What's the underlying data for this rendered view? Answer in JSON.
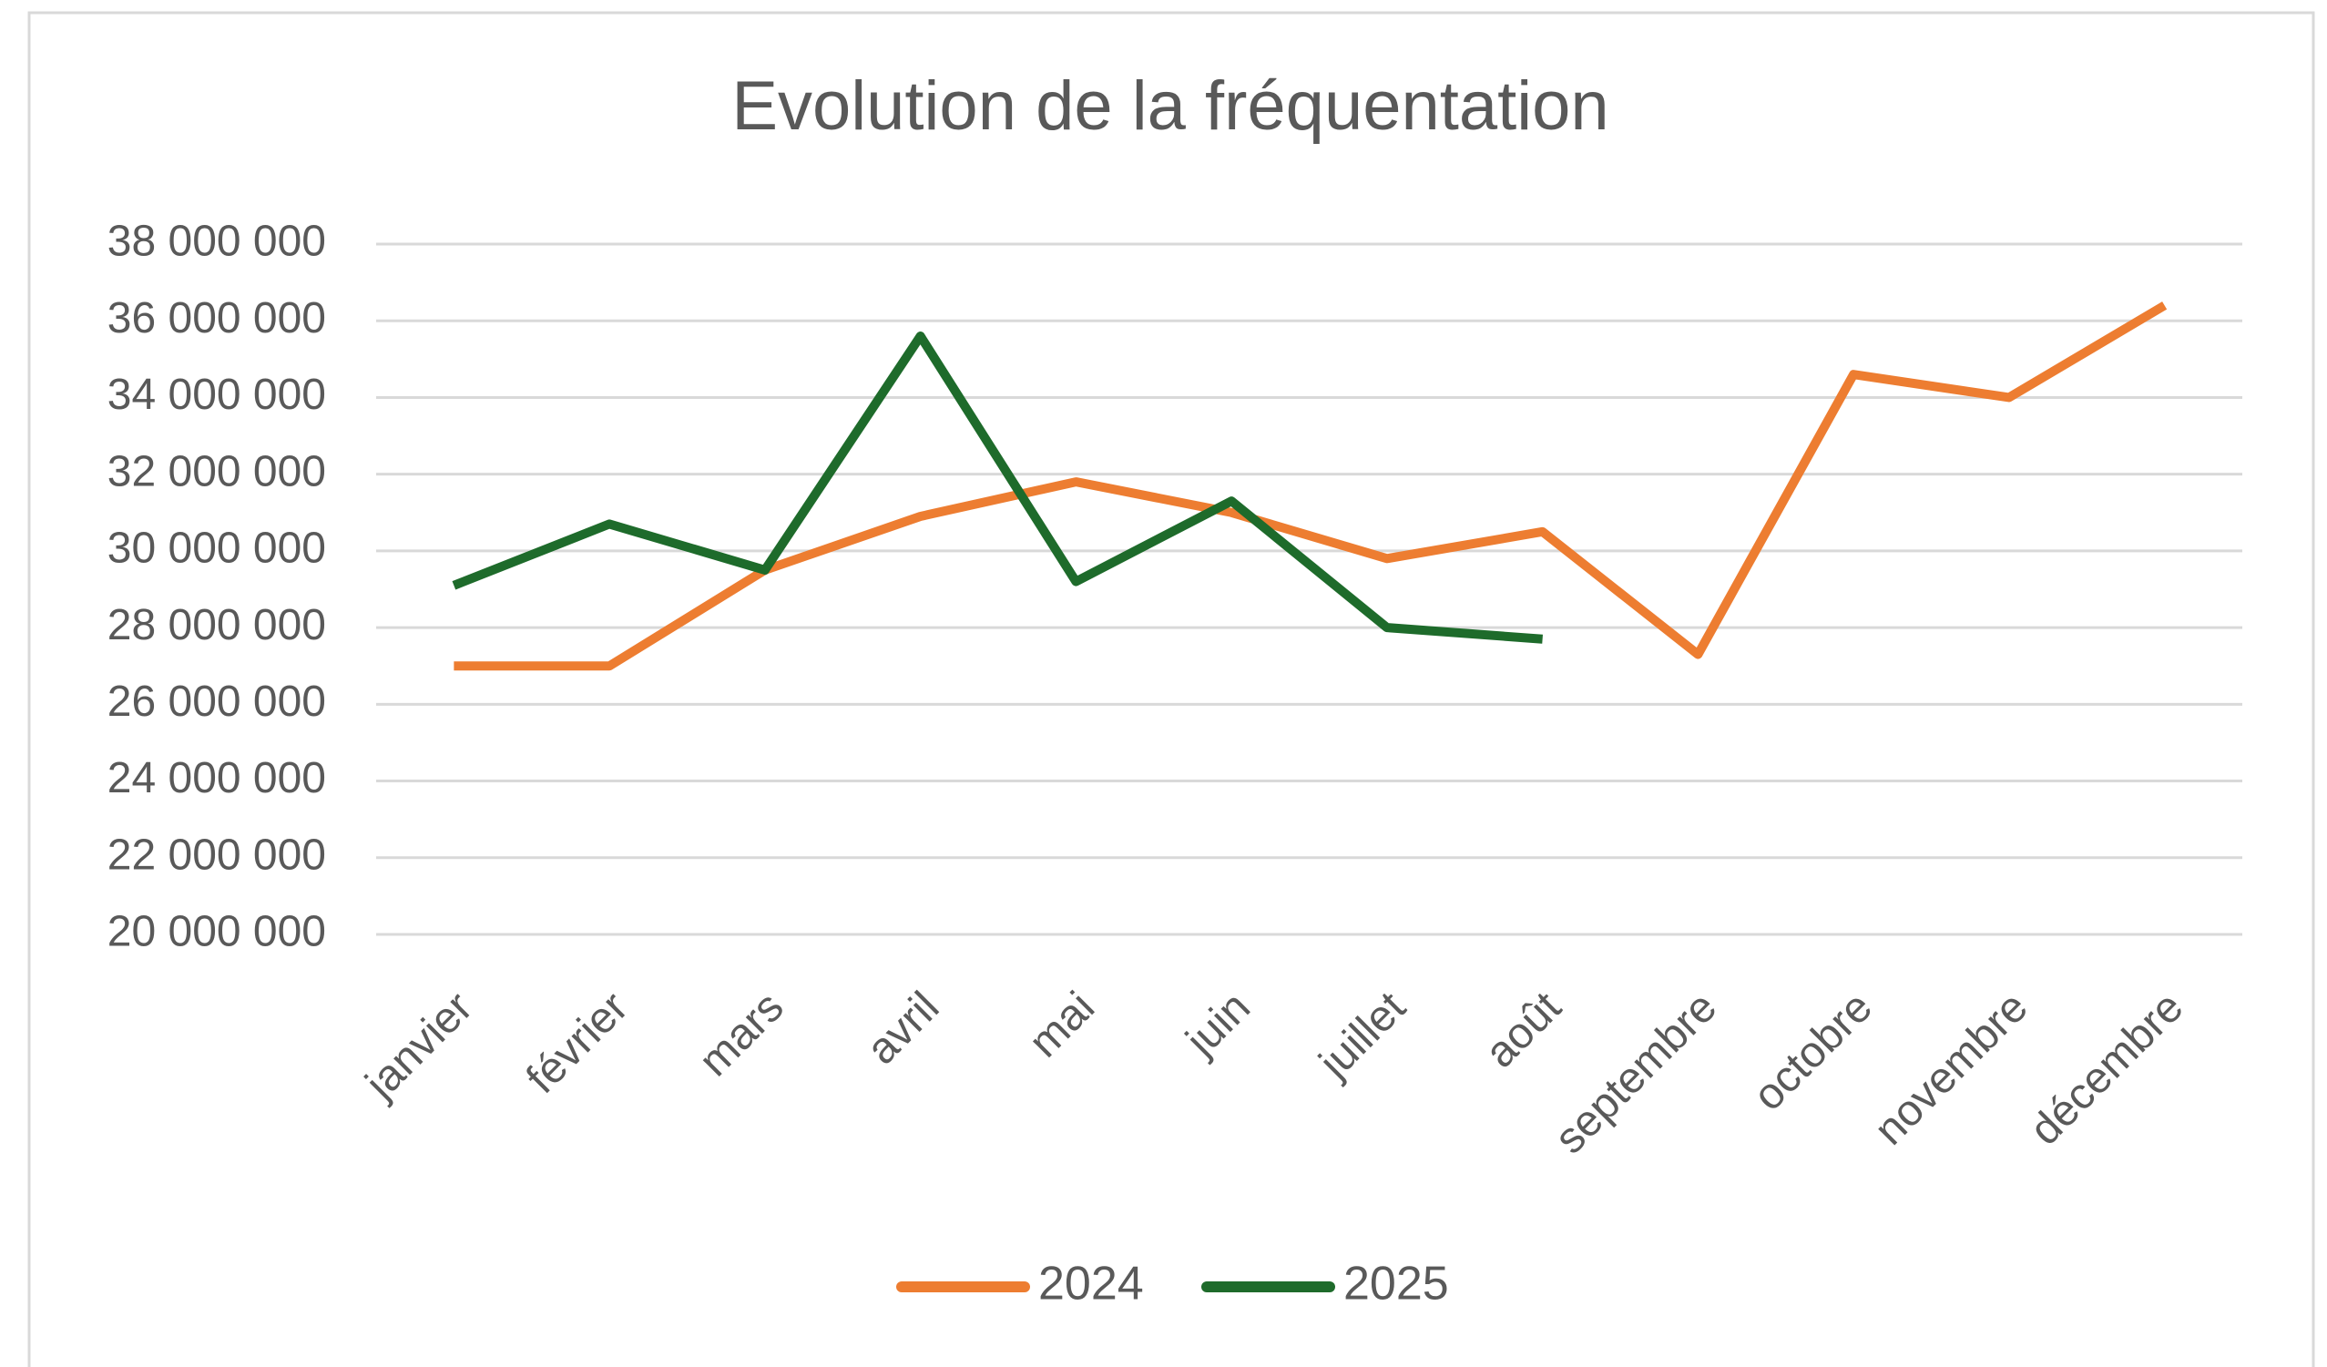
{
  "chart_data": {
    "type": "line",
    "title": "Evolution de la fréquentation",
    "categories": [
      "janvier",
      "février",
      "mars",
      "avril",
      "mai",
      "juin",
      "juillet",
      "août",
      "septembre",
      "octobre",
      "novembre",
      "décembre"
    ],
    "series": [
      {
        "name": "2024",
        "color": "#ed7d31",
        "values": [
          27000000,
          27000000,
          29500000,
          30900000,
          31800000,
          31000000,
          29800000,
          30500000,
          27300000,
          34600000,
          34000000,
          36400000
        ]
      },
      {
        "name": "2025",
        "color": "#1e6b2b",
        "values": [
          29100000,
          30700000,
          29500000,
          35600000,
          29200000,
          31300000,
          28000000,
          27700000,
          null,
          null,
          null,
          null
        ]
      }
    ],
    "ylim": [
      20000000,
      38000000
    ],
    "yticks": [
      {
        "value": 20000000,
        "label": "20 000 000"
      },
      {
        "value": 22000000,
        "label": "22 000 000"
      },
      {
        "value": 24000000,
        "label": "24 000 000"
      },
      {
        "value": 26000000,
        "label": "26 000 000"
      },
      {
        "value": 28000000,
        "label": "28 000 000"
      },
      {
        "value": 30000000,
        "label": "30 000 000"
      },
      {
        "value": 32000000,
        "label": "32 000 000"
      },
      {
        "value": 34000000,
        "label": "34 000 000"
      },
      {
        "value": 36000000,
        "label": "36 000 000"
      },
      {
        "value": 38000000,
        "label": "38 000 000"
      }
    ],
    "grid": true,
    "legend": "bottom"
  }
}
